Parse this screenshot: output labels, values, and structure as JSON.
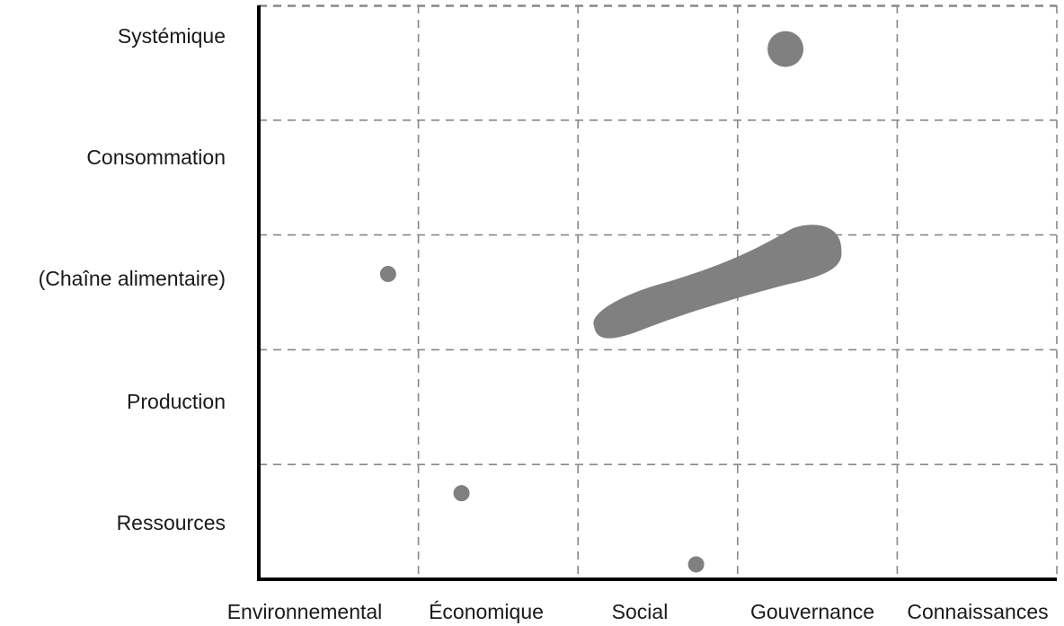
{
  "chart_data": {
    "type": "scatter",
    "title": "",
    "xlabel": "",
    "ylabel": "",
    "categories_x": [
      "Environnemental",
      "Économique",
      "Social",
      "Gouvernance",
      "Connaissances"
    ],
    "categories_y": [
      "Ressources",
      "Production",
      "(Chaîne alimentaire)",
      "Consommation",
      "Systémique"
    ],
    "grid": "dashed",
    "points": [
      {
        "x": 3.3,
        "y": 4.62,
        "size": "large"
      },
      {
        "x": 0.81,
        "y": 2.66,
        "size": "small"
      },
      {
        "x": 1.27,
        "y": 0.75,
        "size": "small"
      },
      {
        "x": 2.74,
        "y": 0.13,
        "size": "small"
      }
    ],
    "regions": [
      {
        "shape": "elongated-blob",
        "x_range": [
          2.1,
          3.65
        ],
        "y_range": [
          1.97,
          3.1
        ]
      }
    ],
    "colors": {
      "marker": "#808080",
      "axis": "#000000",
      "grid": "#888888"
    }
  }
}
